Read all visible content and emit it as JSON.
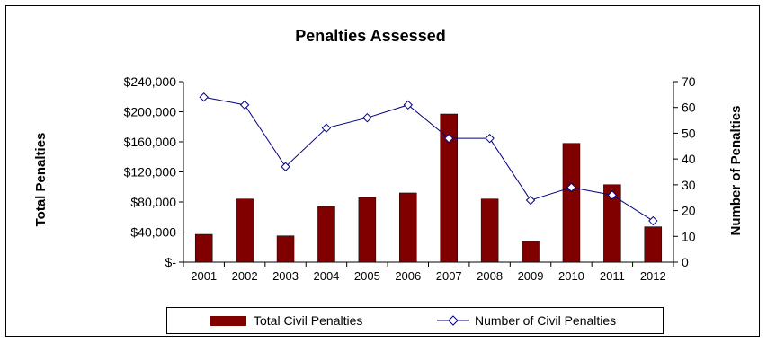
{
  "chart_data": {
    "type": "bar",
    "title": "Penalties Assessed",
    "categories": [
      "2001",
      "2002",
      "2003",
      "2004",
      "2005",
      "2006",
      "2007",
      "2008",
      "2009",
      "2010",
      "2011",
      "2012"
    ],
    "series": [
      {
        "name": "Total Civil Penalties",
        "type": "bar",
        "axis": "left",
        "values": [
          37000,
          84000,
          35000,
          74000,
          86000,
          92000,
          197000,
          84000,
          28000,
          158000,
          103000,
          47000
        ]
      },
      {
        "name": "Number of Civil Penalties",
        "type": "line",
        "axis": "right",
        "values": [
          64,
          61,
          37,
          52,
          56,
          61,
          48,
          48,
          24,
          29,
          26,
          16
        ]
      }
    ],
    "ylabel": "Total Penalties",
    "ylabel_right": "Number of Penalties",
    "ylim": [
      0,
      240000
    ],
    "ylim_right": [
      0,
      70
    ],
    "yticks": [
      "$-",
      "$40,000",
      "$80,000",
      "$120,000",
      "$160,000",
      "$200,000",
      "$240,000"
    ],
    "yticks_right": [
      "0",
      "10",
      "20",
      "30",
      "40",
      "50",
      "60",
      "70"
    ],
    "grid": false,
    "legend": "bottom",
    "colors": {
      "bar": "#800000",
      "line": "#000080",
      "marker_fill": "#ffffff"
    }
  }
}
